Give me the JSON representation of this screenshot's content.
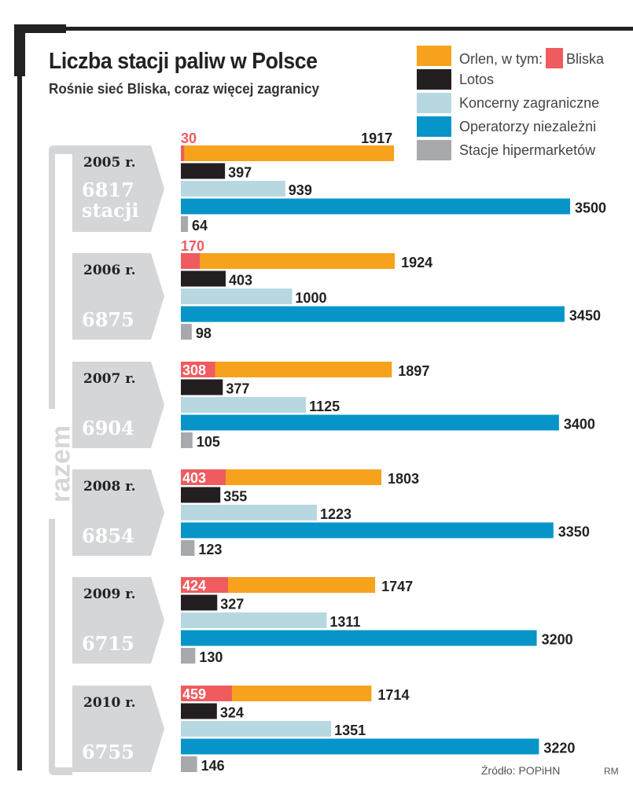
{
  "title": "Liczba stacji paliw w Polsce",
  "subtitle": "Rośnie sieć Bliska, coraz więcej zagranicy",
  "legend": {
    "orlen": "Orlen, w tym:",
    "bliska": "Bliska",
    "lotos": "Lotos",
    "foreign": "Koncerny zagraniczne",
    "independent": "Operatorzy niezależni",
    "hypermarket": "Stacje hipermarketów"
  },
  "colors": {
    "orlen": "#f6a21d",
    "bliska": "#ef5b5f",
    "lotos": "#231f20",
    "foreign": "#b8d8e1",
    "independent": "#0795c9",
    "hypermarket": "#a7a9ac",
    "box": "#d5d6d8"
  },
  "razem_label": "razem",
  "years": [
    {
      "label": "2005 r.",
      "total": "6817",
      "total_suffix": "stacji"
    },
    {
      "label": "2006 r.",
      "total": "6875",
      "total_suffix": ""
    },
    {
      "label": "2007 r.",
      "total": "6904",
      "total_suffix": ""
    },
    {
      "label": "2008 r.",
      "total": "6854",
      "total_suffix": ""
    },
    {
      "label": "2009 r.",
      "total": "6715",
      "total_suffix": ""
    },
    {
      "label": "2010 r.",
      "total": "6755",
      "total_suffix": ""
    }
  ],
  "source": "Źródło: POPiHN",
  "author": "RM",
  "chart_data": {
    "type": "bar",
    "orientation": "horizontal",
    "title": "Liczba stacji paliw w Polsce",
    "subtitle": "Rośnie sieć Bliska, coraz więcej zagranicy",
    "categories": [
      "2005 r.",
      "2006 r.",
      "2007 r.",
      "2008 r.",
      "2009 r.",
      "2010 r."
    ],
    "totals": [
      6817,
      6875,
      6904,
      6854,
      6715,
      6755
    ],
    "series": [
      {
        "name": "Orlen",
        "key": "orlen",
        "values": [
          1917,
          1924,
          1897,
          1803,
          1747,
          1714
        ]
      },
      {
        "name": "Bliska (w tym Orlen)",
        "key": "bliska",
        "values": [
          30,
          170,
          308,
          403,
          424,
          459
        ]
      },
      {
        "name": "Lotos",
        "key": "lotos",
        "values": [
          397,
          403,
          377,
          355,
          327,
          324
        ]
      },
      {
        "name": "Koncerny zagraniczne",
        "key": "foreign",
        "values": [
          939,
          1000,
          1125,
          1223,
          1311,
          1351
        ]
      },
      {
        "name": "Operatorzy niezależni",
        "key": "independent",
        "values": [
          3500,
          3450,
          3400,
          3350,
          3200,
          3220
        ]
      },
      {
        "name": "Stacje hipermarketów",
        "key": "hypermarket",
        "values": [
          64,
          98,
          105,
          123,
          130,
          146
        ]
      }
    ],
    "xlim": [
      0,
      3500
    ],
    "grid": false,
    "legend_position": "top-right",
    "source": "Źródło: POPiHN"
  }
}
